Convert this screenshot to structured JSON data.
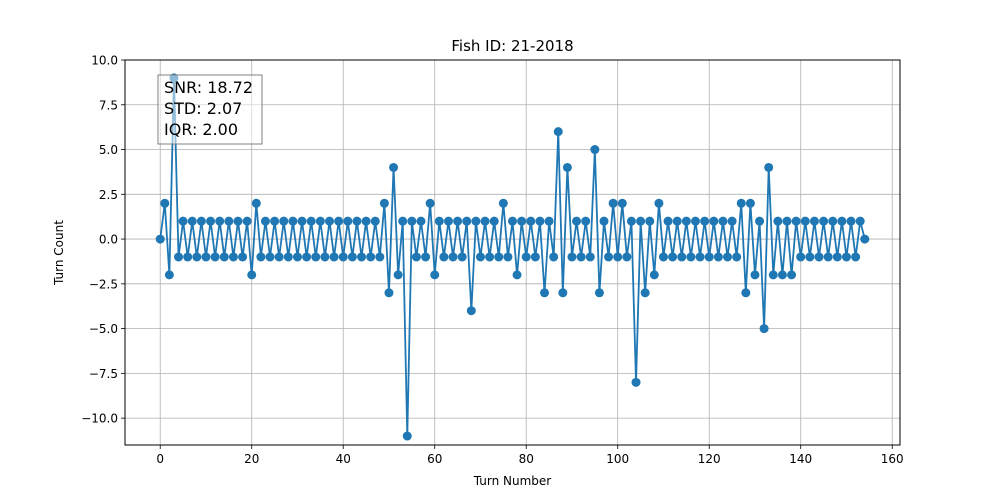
{
  "chart_data": {
    "type": "line",
    "title": "Fish ID: 21-2018",
    "xlabel": "Turn Number",
    "ylabel": "Turn Count",
    "xlim": [
      -7.7,
      161.7
    ],
    "ylim": [
      -11.5,
      10
    ],
    "xticks": [
      0,
      20,
      40,
      60,
      80,
      100,
      120,
      140,
      160
    ],
    "yticks": [
      -10.0,
      -7.5,
      -5.0,
      -2.5,
      0.0,
      2.5,
      5.0,
      7.5,
      10.0
    ],
    "grid": true,
    "color": "#1f77b4",
    "marker": "circle",
    "annotation": {
      "lines": [
        "SNR: 18.72",
        "STD: 2.07",
        "IQR: 2.00"
      ],
      "placement": "top-left"
    },
    "series": [
      {
        "values": [
          0,
          2,
          -2,
          9,
          -1,
          1,
          -1,
          1,
          -1,
          1,
          -1,
          1,
          -1,
          1,
          -1,
          1,
          -1,
          1,
          -1,
          1,
          -2,
          2,
          -1,
          1,
          -1,
          1,
          -1,
          1,
          -1,
          1,
          -1,
          1,
          -1,
          1,
          -1,
          1,
          -1,
          1,
          -1,
          1,
          -1,
          1,
          -1,
          1,
          -1,
          1,
          -1,
          1,
          -1,
          2,
          -3,
          4,
          -2,
          1,
          -11,
          1,
          -1,
          1,
          -1,
          2,
          -2,
          1,
          -1,
          1,
          -1,
          1,
          -1,
          1,
          -4,
          1,
          -1,
          1,
          -1,
          1,
          -1,
          2,
          -1,
          1,
          -2,
          1,
          -1,
          1,
          -1,
          1,
          -3,
          1,
          -1,
          6,
          -3,
          4,
          -1,
          1,
          -1,
          1,
          -1,
          5,
          -3,
          1,
          -1,
          2,
          -1,
          2,
          -1,
          1,
          -8,
          1,
          -3,
          1,
          -2,
          2,
          -1,
          1,
          -1,
          1,
          -1,
          1,
          -1,
          1,
          -1,
          1,
          -1,
          1,
          -1,
          1,
          -1,
          1,
          -1,
          2,
          -3,
          2,
          -2,
          1,
          -5,
          4,
          -2,
          1,
          -2,
          1,
          -2,
          1,
          -1,
          1,
          -1,
          1,
          -1,
          1,
          -1,
          1,
          -1,
          1,
          -1,
          1,
          -1,
          1,
          0
        ]
      }
    ]
  }
}
